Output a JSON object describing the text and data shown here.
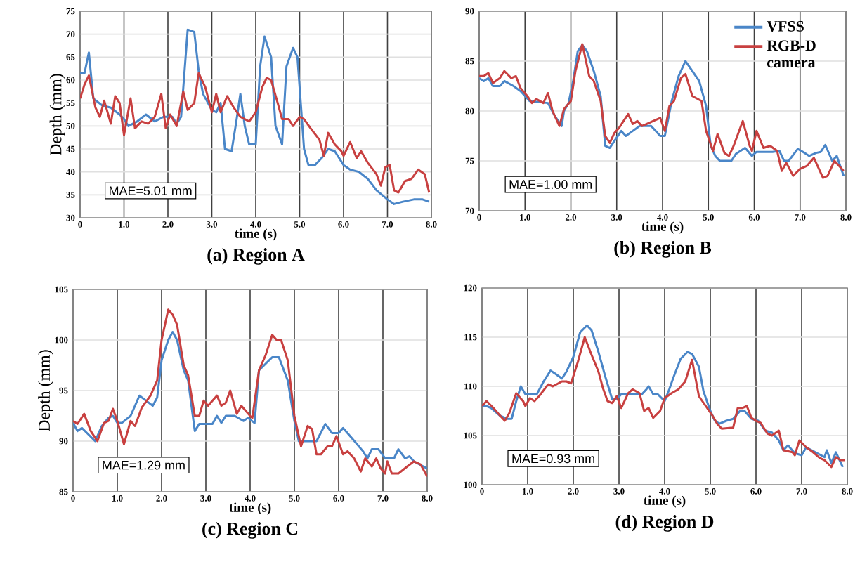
{
  "chart_data": [
    {
      "type": "line",
      "title": "(a) Region A",
      "xlabel": "time (s)",
      "ylabel": "Depth (mm)",
      "xlim": [
        0,
        8
      ],
      "ylim": [
        30,
        75
      ],
      "xticks": [
        {
          "value": 0,
          "label": "0"
        },
        {
          "value": 1,
          "label": "1.0"
        },
        {
          "value": 2,
          "label": "2.0"
        },
        {
          "value": 3,
          "label": "3.0"
        },
        {
          "value": 4,
          "label": "4.0"
        },
        {
          "value": 5,
          "label": "5.0"
        },
        {
          "value": 6,
          "label": "6.0"
        },
        {
          "value": 7,
          "label": "7.0"
        },
        {
          "value": 8,
          "label": "8.0"
        }
      ],
      "yticks": [
        30,
        35,
        40,
        45,
        50,
        55,
        60,
        65,
        70,
        75
      ],
      "grid": true,
      "annotations": [
        "MAE=5.01 mm"
      ],
      "series": [
        {
          "color": "#4a86c8",
          "x": [
            0,
            0.1,
            0.2,
            0.3,
            0.5,
            0.7,
            0.9,
            1.0,
            1.1,
            1.3,
            1.5,
            1.7,
            1.9,
            2.1,
            2.2,
            2.3,
            2.45,
            2.6,
            2.7,
            2.8,
            3.0,
            3.1,
            3.2,
            3.3,
            3.45,
            3.55,
            3.65,
            3.75,
            3.85,
            4.0,
            4.1,
            4.2,
            4.35,
            4.45,
            4.6,
            4.7,
            4.85,
            4.95,
            5.1,
            5.2,
            5.35,
            5.5,
            5.65,
            5.8,
            6.0,
            6.15,
            6.35,
            6.55,
            6.75,
            7.0,
            7.15,
            7.35,
            7.6,
            7.8,
            7.95
          ],
          "values": [
            61.5,
            61.5,
            66,
            56,
            54.5,
            54,
            52.5,
            51.5,
            50,
            51,
            52.5,
            51,
            52,
            52,
            50.5,
            52,
            71,
            70.5,
            62,
            57,
            53.5,
            53,
            55,
            45,
            44.5,
            50.5,
            57,
            50,
            46,
            46,
            63,
            69.5,
            65,
            50,
            46,
            63,
            67,
            65,
            45,
            41.5,
            41.5,
            43,
            45,
            44.5,
            41.5,
            40.5,
            40,
            38.5,
            36,
            34,
            33,
            33.5,
            34,
            34,
            33.5
          ]
        },
        {
          "color": "#c84040",
          "x": [
            0,
            0.1,
            0.2,
            0.35,
            0.45,
            0.55,
            0.7,
            0.8,
            0.9,
            1.0,
            1.15,
            1.25,
            1.4,
            1.55,
            1.7,
            1.85,
            1.95,
            2.05,
            2.2,
            2.35,
            2.45,
            2.6,
            2.7,
            2.85,
            3.0,
            3.1,
            3.2,
            3.35,
            3.5,
            3.65,
            3.85,
            4.0,
            4.15,
            4.25,
            4.35,
            4.5,
            4.6,
            4.75,
            4.85,
            5.0,
            5.1,
            5.25,
            5.45,
            5.55,
            5.65,
            5.8,
            5.95,
            6.0,
            6.15,
            6.3,
            6.4,
            6.55,
            6.75,
            6.85,
            6.95,
            7.05,
            7.15,
            7.25,
            7.4,
            7.55,
            7.7,
            7.85,
            7.95
          ],
          "values": [
            56,
            59,
            61,
            54,
            52,
            55.5,
            50.5,
            56.5,
            55,
            48,
            56,
            49.5,
            51,
            50.5,
            52,
            57,
            49.5,
            52.5,
            50,
            57.5,
            53.5,
            55,
            61.5,
            58.5,
            53,
            57,
            53,
            56.5,
            54,
            52,
            51,
            53,
            58.5,
            60.5,
            60,
            55,
            51.5,
            51.5,
            50,
            52,
            51.5,
            49.5,
            47,
            43.5,
            48.5,
            46,
            44.5,
            43.5,
            46.5,
            43,
            44.5,
            42,
            39.5,
            37,
            41,
            41.5,
            36,
            35.5,
            38,
            38.5,
            40.5,
            39.5,
            35.5
          ]
        }
      ]
    },
    {
      "type": "line",
      "title": "(b) Region B",
      "xlabel": "time (s)",
      "xlim": [
        0,
        8
      ],
      "ylim": [
        70,
        90
      ],
      "xticks": [
        {
          "value": 0,
          "label": "0"
        },
        {
          "value": 1,
          "label": "1.0"
        },
        {
          "value": 2,
          "label": "2.0"
        },
        {
          "value": 3,
          "label": "3.0"
        },
        {
          "value": 4,
          "label": "4.0"
        },
        {
          "value": 5,
          "label": "5.0"
        },
        {
          "value": 6,
          "label": "6.0"
        },
        {
          "value": 7,
          "label": "7.0"
        },
        {
          "value": 8,
          "label": "8.0"
        }
      ],
      "yticks": [
        70,
        75,
        80,
        85,
        90
      ],
      "grid": true,
      "legend": "top right",
      "annotations": [
        "MAE=1.00 mm"
      ],
      "series": [
        {
          "name": "VFSS",
          "color": "#4a86c8",
          "x": [
            0,
            0.1,
            0.2,
            0.3,
            0.45,
            0.55,
            0.75,
            0.9,
            1.0,
            1.1,
            1.5,
            1.65,
            1.8,
            1.85,
            1.95,
            2.05,
            2.15,
            2.25,
            2.35,
            2.5,
            2.65,
            2.75,
            2.85,
            2.95,
            3.1,
            3.2,
            3.35,
            3.5,
            3.75,
            3.95,
            4.05,
            4.2,
            4.35,
            4.5,
            4.65,
            4.8,
            4.95,
            5.05,
            5.15,
            5.25,
            5.5,
            5.6,
            5.8,
            5.95,
            6.05,
            6.4,
            6.55,
            6.65,
            6.75,
            6.95,
            7.1,
            7.2,
            7.35,
            7.45,
            7.55,
            7.7,
            7.8,
            7.95
          ],
          "values": [
            83.3,
            83,
            83.3,
            82.5,
            82.5,
            83,
            82.5,
            82,
            81.5,
            81,
            80.8,
            79.5,
            78.5,
            80,
            80.8,
            83,
            86,
            86.6,
            86,
            84,
            81.5,
            76.5,
            76.3,
            77,
            78,
            77.5,
            78,
            78.5,
            78.5,
            77.5,
            77.5,
            81,
            83.5,
            85,
            84,
            83,
            80.5,
            76.5,
            75.5,
            75,
            75,
            75.7,
            76.3,
            75.5,
            75.9,
            75.9,
            76,
            75,
            75,
            76.2,
            75.8,
            75.5,
            75.8,
            75.9,
            76.6,
            75,
            75.5,
            73.5
          ]
        },
        {
          "name": "RGB-D camera",
          "color": "#c84040",
          "x": [
            0,
            0.1,
            0.2,
            0.3,
            0.45,
            0.55,
            0.7,
            0.8,
            0.9,
            1.05,
            1.15,
            1.25,
            1.4,
            1.5,
            1.6,
            1.75,
            1.85,
            2.0,
            2.1,
            2.25,
            2.4,
            2.5,
            2.65,
            2.75,
            2.85,
            2.95,
            3.05,
            3.25,
            3.35,
            3.45,
            3.55,
            3.7,
            3.8,
            3.95,
            4.05,
            4.15,
            4.25,
            4.4,
            4.5,
            4.65,
            4.85,
            4.95,
            5.1,
            5.2,
            5.35,
            5.45,
            5.55,
            5.75,
            5.9,
            5.95,
            6.05,
            6.2,
            6.35,
            6.5,
            6.6,
            6.7,
            6.85,
            7.0,
            7.15,
            7.3,
            7.5,
            7.6,
            7.75,
            7.95
          ],
          "values": [
            83.5,
            83.5,
            83.8,
            82.8,
            83.3,
            84,
            83.3,
            83.5,
            82.3,
            81.5,
            80.8,
            81.2,
            80.8,
            81.8,
            80,
            78.5,
            80.2,
            81,
            84,
            86.7,
            83.5,
            83,
            81,
            77.5,
            76.8,
            77.8,
            78.3,
            79.7,
            78.7,
            79,
            78.5,
            78.8,
            79,
            79.3,
            78,
            80.5,
            81,
            83.3,
            83.7,
            81.5,
            81,
            78,
            76,
            77.7,
            75.8,
            75.5,
            76.5,
            79,
            76.5,
            76,
            78,
            76.3,
            76.5,
            76,
            74,
            74.8,
            73.5,
            74.2,
            74.5,
            75.3,
            73.3,
            73.5,
            75,
            74
          ]
        }
      ]
    },
    {
      "type": "line",
      "title": "(c) Region C",
      "xlabel": "time (s)",
      "ylabel": "Depth (mm)",
      "xlim": [
        0,
        8
      ],
      "ylim": [
        85,
        105
      ],
      "xticks": [
        {
          "value": 0,
          "label": "0"
        },
        {
          "value": 1,
          "label": "1.0"
        },
        {
          "value": 2,
          "label": "2.0"
        },
        {
          "value": 3,
          "label": "3.0"
        },
        {
          "value": 4,
          "label": "4.0"
        },
        {
          "value": 5,
          "label": "5.0"
        },
        {
          "value": 6,
          "label": "6.0"
        },
        {
          "value": 7,
          "label": "7.0"
        },
        {
          "value": 8,
          "label": "8.0"
        }
      ],
      "yticks": [
        85,
        90,
        95,
        100,
        105
      ],
      "grid": true,
      "annotations": [
        "MAE=1.29 mm"
      ],
      "series": [
        {
          "color": "#4a86c8",
          "x": [
            0,
            0.1,
            0.2,
            0.5,
            0.65,
            0.8,
            0.9,
            1.0,
            1.1,
            1.3,
            1.5,
            1.65,
            1.8,
            1.9,
            2.0,
            2.15,
            2.25,
            2.35,
            2.5,
            2.6,
            2.75,
            2.85,
            3.15,
            3.25,
            3.35,
            3.45,
            3.65,
            3.85,
            3.95,
            4.1,
            4.2,
            4.5,
            4.65,
            4.85,
            5.0,
            5.1,
            5.5,
            5.7,
            5.85,
            6.0,
            6.1,
            6.3,
            6.55,
            6.65,
            6.75,
            6.9,
            7.05,
            7.25,
            7.35,
            7.5,
            7.6,
            7.7,
            8.0
          ],
          "values": [
            91.8,
            91,
            91.3,
            90,
            91.5,
            92.3,
            92.5,
            91.8,
            91.8,
            92.5,
            94.5,
            94,
            93.5,
            94.3,
            98,
            100,
            100.8,
            100,
            97,
            96,
            91,
            91.7,
            91.7,
            92.5,
            91.8,
            92.5,
            92.5,
            92,
            92.3,
            91.8,
            97,
            98.3,
            98.3,
            96,
            92,
            90,
            90,
            91.7,
            90.8,
            90.8,
            91.3,
            90.3,
            89,
            88.3,
            89.2,
            89.2,
            88.3,
            88.3,
            89.2,
            88.3,
            88.5,
            88,
            87.3
          ]
        },
        {
          "color": "#c84040",
          "x": [
            0,
            0.1,
            0.25,
            0.4,
            0.55,
            0.7,
            0.8,
            0.9,
            1.0,
            1.15,
            1.3,
            1.4,
            1.55,
            1.75,
            1.9,
            2.0,
            2.15,
            2.25,
            2.35,
            2.5,
            2.6,
            2.75,
            2.85,
            2.95,
            3.05,
            3.25,
            3.35,
            3.45,
            3.55,
            3.7,
            3.8,
            4.0,
            4.05,
            4.2,
            4.35,
            4.5,
            4.6,
            4.7,
            4.85,
            5.0,
            5.15,
            5.3,
            5.4,
            5.5,
            5.6,
            5.75,
            5.85,
            5.95,
            6.1,
            6.2,
            6.35,
            6.5,
            6.6,
            6.75,
            6.85,
            6.95,
            7.05,
            7.1,
            7.2,
            7.35,
            7.55,
            7.7,
            7.85,
            8.0
          ],
          "values": [
            92,
            91.7,
            92.7,
            91,
            90,
            91.8,
            92,
            93.2,
            92,
            89.7,
            92,
            91.5,
            93.3,
            94.5,
            96,
            100,
            103,
            102.5,
            101.5,
            97.5,
            96.5,
            92.5,
            92.5,
            94,
            93.5,
            94.5,
            93.5,
            93.8,
            95,
            92.7,
            93.5,
            92.5,
            92.3,
            97,
            98.5,
            100.5,
            100,
            100,
            98,
            92.5,
            89.5,
            91.5,
            91.2,
            88.7,
            88.7,
            89.5,
            89.5,
            90.5,
            88.7,
            89,
            88.3,
            87,
            88.3,
            87.5,
            88.3,
            87.3,
            86.8,
            88,
            86.8,
            86.8,
            87.5,
            88,
            87.7,
            86.5
          ]
        }
      ]
    },
    {
      "type": "line",
      "title": "(d) Region D",
      "xlabel": "time (s)",
      "xlim": [
        0,
        8
      ],
      "ylim": [
        100,
        120
      ],
      "xticks": [
        {
          "value": 0,
          "label": "0"
        },
        {
          "value": 1,
          "label": "1.0"
        },
        {
          "value": 2,
          "label": "2.0"
        },
        {
          "value": 3,
          "label": "3.0"
        },
        {
          "value": 4,
          "label": "4.0"
        },
        {
          "value": 5,
          "label": "5.0"
        },
        {
          "value": 6,
          "label": "6.0"
        },
        {
          "value": 7,
          "label": "7.0"
        },
        {
          "value": 8,
          "label": "8.0"
        }
      ],
      "yticks": [
        100,
        105,
        110,
        115,
        120
      ],
      "grid": true,
      "annotations": [
        "MAE=0.93 mm"
      ],
      "series": [
        {
          "color": "#4a86c8",
          "x": [
            0,
            0.1,
            0.2,
            0.4,
            0.55,
            0.65,
            0.75,
            0.85,
            0.95,
            1.2,
            1.35,
            1.5,
            1.6,
            1.75,
            1.85,
            2.0,
            2.15,
            2.3,
            2.4,
            2.55,
            2.7,
            2.85,
            2.95,
            3.05,
            3.5,
            3.6,
            3.65,
            3.75,
            3.85,
            4.0,
            4.1,
            4.2,
            4.35,
            4.5,
            4.6,
            4.75,
            4.85,
            5.0,
            5.1,
            5.2,
            5.35,
            5.5,
            5.65,
            5.75,
            5.9,
            6.05,
            6.2,
            6.35,
            6.5,
            6.6,
            6.7,
            6.85,
            7.0,
            7.1,
            7.3,
            7.5,
            7.55,
            7.65,
            7.75,
            7.9
          ],
          "values": [
            108,
            108,
            107.8,
            107,
            106.7,
            106.7,
            108.5,
            110,
            109.2,
            109.2,
            110.5,
            111.6,
            111.3,
            110.8,
            111.5,
            113,
            115.5,
            116.2,
            115.7,
            113.5,
            111,
            108.7,
            108.7,
            109.2,
            109.2,
            109.7,
            110,
            109.2,
            109.2,
            108.5,
            109.7,
            111,
            112.8,
            113.5,
            113.3,
            112,
            109.5,
            107.5,
            106.5,
            106.2,
            106.5,
            106.7,
            107.5,
            107.5,
            106.7,
            106.5,
            105.5,
            105.3,
            104.5,
            103.5,
            104,
            103.2,
            103,
            103.8,
            103.3,
            102.8,
            103.5,
            102.2,
            103.3,
            101.8
          ]
        },
        {
          "color": "#c84040",
          "x": [
            0,
            0.1,
            0.25,
            0.4,
            0.5,
            0.6,
            0.75,
            0.9,
            0.95,
            1.05,
            1.15,
            1.25,
            1.45,
            1.55,
            1.75,
            1.85,
            1.95,
            2.1,
            2.25,
            2.4,
            2.55,
            2.65,
            2.75,
            2.85,
            2.95,
            3.05,
            3.2,
            3.3,
            3.45,
            3.55,
            3.65,
            3.75,
            3.9,
            4.0,
            4.15,
            4.3,
            4.45,
            4.6,
            4.75,
            4.9,
            5.05,
            5.15,
            5.25,
            5.5,
            5.6,
            5.7,
            5.8,
            5.9,
            6.0,
            6.1,
            6.25,
            6.35,
            6.5,
            6.6,
            6.8,
            6.85,
            6.95,
            7.1,
            7.25,
            7.4,
            7.5,
            7.65,
            7.75,
            7.85,
            7.95
          ],
          "values": [
            108,
            108.5,
            107.8,
            107,
            106.5,
            107.3,
            109.3,
            108.5,
            108,
            108.8,
            108.5,
            109,
            110.2,
            110,
            110.5,
            110.5,
            110.3,
            112.5,
            115,
            113.2,
            111.5,
            109.8,
            108.5,
            108.3,
            109,
            107.8,
            109.3,
            109.7,
            109.3,
            107.5,
            107.8,
            106.8,
            107.5,
            108.8,
            109.3,
            109.7,
            110.5,
            112.7,
            109,
            108,
            107,
            106.2,
            105.7,
            105.8,
            107.8,
            107.8,
            108,
            106.8,
            106.5,
            106.3,
            105.2,
            105,
            105.5,
            103.5,
            103.3,
            103,
            104.5,
            103.8,
            103.3,
            102.7,
            102.5,
            101.8,
            102.8,
            102.5,
            102.5
          ]
        }
      ]
    }
  ]
}
